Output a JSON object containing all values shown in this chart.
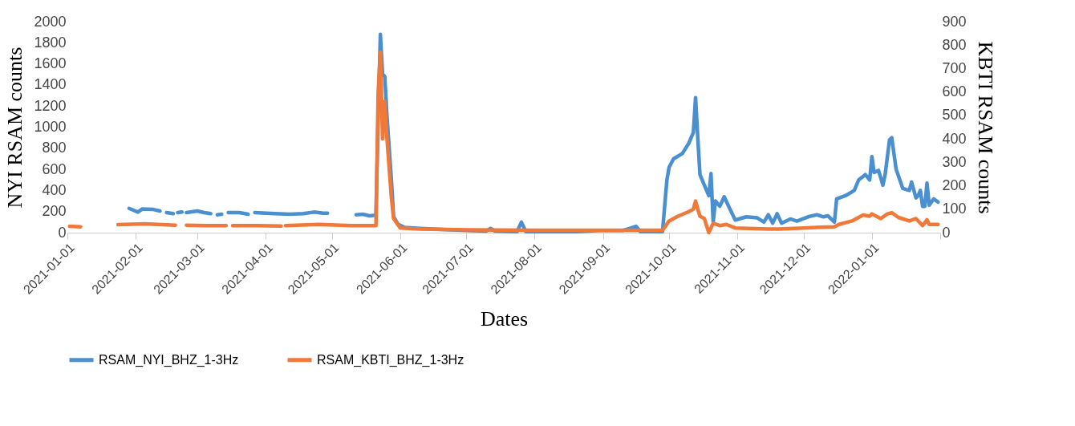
{
  "chart_data": {
    "type": "line",
    "xlabel": "Dates",
    "ylabel": "NYI RSAM counts",
    "y2label": "KBTI RSAM counts",
    "xlim": [
      "2021-01-01",
      "2022-02-01"
    ],
    "xticks": [
      {
        "value": "2021-01-01",
        "label": "2021-01-01"
      },
      {
        "value": "2021-02-01",
        "label": "2021-02-01"
      },
      {
        "value": "2021-03-01",
        "label": "2021-03-01"
      },
      {
        "value": "2021-04-01",
        "label": "2021-04-01"
      },
      {
        "value": "2021-05-01",
        "label": "2021-05-01"
      },
      {
        "value": "2021-06-01",
        "label": "2021-06-01"
      },
      {
        "value": "2021-07-01",
        "label": "2021-07-01"
      },
      {
        "value": "2021-08-01",
        "label": "2021-08-01"
      },
      {
        "value": "2021-09-01",
        "label": "2021-09-01"
      },
      {
        "value": "2021-10-01",
        "label": "2021-10-01"
      },
      {
        "value": "2021-11-01",
        "label": "2021-11-01"
      },
      {
        "value": "2021-12-01",
        "label": "2021-12-01"
      },
      {
        "value": "2022-01-01",
        "label": "2022-01-01"
      },
      {
        "value": "2022-02-01",
        "label": null
      }
    ],
    "ylim": [
      0,
      2000
    ],
    "yticks": [
      0,
      200,
      400,
      600,
      800,
      1000,
      1200,
      1400,
      1600,
      1800,
      2000
    ],
    "y2lim": [
      0,
      900
    ],
    "y2ticks": [
      0,
      100,
      200,
      300,
      400,
      500,
      600,
      700,
      800,
      900
    ],
    "grid": false,
    "legend": "bottom",
    "line_style": "solid",
    "marker": "none",
    "series": [
      {
        "name": "RSAM_NYI_BHZ_1-3Hz",
        "color": "#4a90d0",
        "axis": "y",
        "x": [
          "2021-01-29",
          "2021-02-02",
          "2021-02-04",
          "2021-02-09",
          "2021-02-12",
          "2021-02-13",
          "2021-02-15",
          "2021-02-18",
          "2021-02-19",
          "2021-02-20",
          "2021-02-22",
          "2021-02-23",
          "2021-02-24",
          "2021-03-01",
          "2021-03-04",
          "2021-03-07",
          "2021-03-08",
          "2021-03-10",
          "2021-03-12",
          "2021-03-13",
          "2021-03-15",
          "2021-03-20",
          "2021-03-24",
          "2021-03-25",
          "2021-03-27",
          "2021-04-05",
          "2021-04-12",
          "2021-04-18",
          "2021-04-23",
          "2021-04-27",
          "2021-04-29",
          "2021-04-30",
          "2021-05-12",
          "2021-05-15",
          "2021-05-18",
          "2021-05-21",
          "2021-05-22",
          "2021-05-23",
          "2021-05-24",
          "2021-05-25",
          "2021-05-26",
          "2021-05-28",
          "2021-05-29",
          "2021-05-31",
          "2021-06-03",
          "2021-06-10",
          "2021-06-20",
          "2021-07-01",
          "2021-07-10",
          "2021-07-12",
          "2021-07-14",
          "2021-07-24",
          "2021-07-26",
          "2021-07-28",
          "2021-08-10",
          "2021-08-20",
          "2021-08-30",
          "2021-09-10",
          "2021-09-16",
          "2021-09-18",
          "2021-09-28",
          "2021-09-30",
          "2021-10-01",
          "2021-10-03",
          "2021-10-07",
          "2021-10-10",
          "2021-10-12",
          "2021-10-13",
          "2021-10-14",
          "2021-10-15",
          "2021-10-17",
          "2021-10-19",
          "2021-10-20",
          "2021-10-21",
          "2021-10-22",
          "2021-10-24",
          "2021-10-26",
          "2021-10-28",
          "2021-10-31",
          "2021-11-05",
          "2021-11-10",
          "2021-11-13",
          "2021-11-15",
          "2021-11-17",
          "2021-11-19",
          "2021-11-21",
          "2021-11-25",
          "2021-11-28",
          "2021-12-03",
          "2021-12-07",
          "2021-12-10",
          "2021-12-12",
          "2021-12-15",
          "2021-12-16",
          "2021-12-20",
          "2021-12-24",
          "2021-12-26",
          "2021-12-29",
          "2021-12-31",
          "2022-01-01",
          "2022-01-02",
          "2022-01-04",
          "2022-01-06",
          "2022-01-07",
          "2022-01-09",
          "2022-01-10",
          "2022-01-12",
          "2022-01-15",
          "2022-01-18",
          "2022-01-19",
          "2022-01-21",
          "2022-01-22",
          "2022-01-23",
          "2022-01-24",
          "2022-01-25",
          "2022-01-26",
          "2022-01-27",
          "2022-01-29",
          "2022-01-31"
        ],
        "values": [
          230,
          195,
          225,
          220,
          205,
          null,
          190,
          180,
          null,
          190,
          195,
          null,
          190,
          205,
          190,
          180,
          null,
          170,
          175,
          null,
          190,
          190,
          175,
          null,
          190,
          180,
          175,
          180,
          195,
          185,
          185,
          null,
          170,
          175,
          160,
          165,
          1100,
          1880,
          1500,
          1480,
          1100,
          500,
          150,
          80,
          50,
          40,
          30,
          20,
          15,
          40,
          15,
          10,
          100,
          10,
          10,
          10,
          20,
          20,
          60,
          10,
          10,
          500,
          620,
          700,
          750,
          850,
          950,
          1280,
          900,
          550,
          450,
          350,
          560,
          100,
          300,
          250,
          340,
          250,
          120,
          150,
          140,
          100,
          170,
          90,
          180,
          90,
          130,
          110,
          150,
          170,
          150,
          160,
          100,
          320,
          350,
          400,
          500,
          550,
          500,
          720,
          570,
          590,
          450,
          550,
          880,
          900,
          600,
          420,
          400,
          480,
          330,
          350,
          400,
          250,
          250,
          470,
          260,
          320,
          290
        ]
      },
      {
        "name": "RSAM_KBTI_BHZ_1-3Hz",
        "color": "#f07838",
        "axis": "y2",
        "x": [
          "2021-01-02",
          "2021-01-07",
          "2021-01-08",
          "2021-01-24",
          "2021-02-05",
          "2021-02-19",
          "2021-02-20",
          "2021-02-24",
          "2021-03-05",
          "2021-03-14",
          "2021-03-15",
          "2021-03-17",
          "2021-03-28",
          "2021-04-08",
          "2021-04-09",
          "2021-04-10",
          "2021-04-25",
          "2021-05-10",
          "2021-05-21",
          "2021-05-22",
          "2021-05-23",
          "2021-05-24",
          "2021-05-25",
          "2021-05-26",
          "2021-05-28",
          "2021-05-29",
          "2021-06-01",
          "2021-06-10",
          "2021-07-01",
          "2021-08-01",
          "2021-09-01",
          "2021-09-28",
          "2021-10-01",
          "2021-10-05",
          "2021-10-10",
          "2021-10-12",
          "2021-10-13",
          "2021-10-14",
          "2021-10-15",
          "2021-10-17",
          "2021-10-19",
          "2021-10-20",
          "2021-10-21",
          "2021-10-24",
          "2021-10-27",
          "2021-10-31",
          "2021-11-15",
          "2021-11-20",
          "2021-12-01",
          "2021-12-15",
          "2021-12-17",
          "2021-12-23",
          "2021-12-28",
          "2021-12-31",
          "2022-01-01",
          "2022-01-03",
          "2022-01-05",
          "2022-01-08",
          "2022-01-10",
          "2022-01-13",
          "2022-01-18",
          "2022-01-21",
          "2022-01-24",
          "2022-01-26",
          "2022-01-27",
          "2022-01-31"
        ],
        "values": [
          27,
          25,
          null,
          34,
          38,
          32,
          null,
          32,
          30,
          30,
          null,
          30,
          30,
          28,
          null,
          30,
          35,
          30,
          30,
          600,
          770,
          400,
          560,
          400,
          150,
          60,
          20,
          15,
          12,
          10,
          10,
          10,
          50,
          70,
          90,
          100,
          135,
          100,
          70,
          60,
          0,
          20,
          40,
          30,
          35,
          20,
          15,
          15,
          20,
          25,
          35,
          50,
          75,
          70,
          80,
          70,
          60,
          80,
          85,
          65,
          50,
          60,
          30,
          55,
          35,
          35
        ]
      }
    ]
  }
}
